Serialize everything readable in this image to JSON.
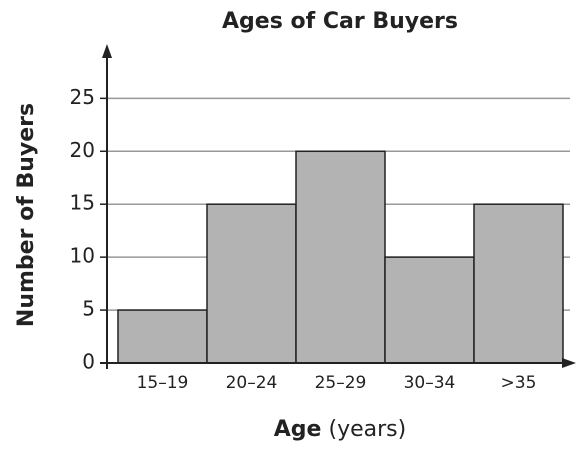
{
  "chart_data": {
    "type": "bar",
    "title": "Ages of Car Buyers",
    "categories": [
      "15–19",
      "20–24",
      "25–29",
      "30–34",
      ">35"
    ],
    "values": [
      5,
      15,
      20,
      10,
      15
    ],
    "color": "#b3b3b3",
    "ylim": [
      0,
      29
    ],
    "yticks": [
      0,
      5,
      10,
      15,
      20,
      25
    ],
    "grid": true,
    "ylabel": "Number of Buyers",
    "xlabel": "Age",
    "xlabel_unit": "(years)"
  }
}
